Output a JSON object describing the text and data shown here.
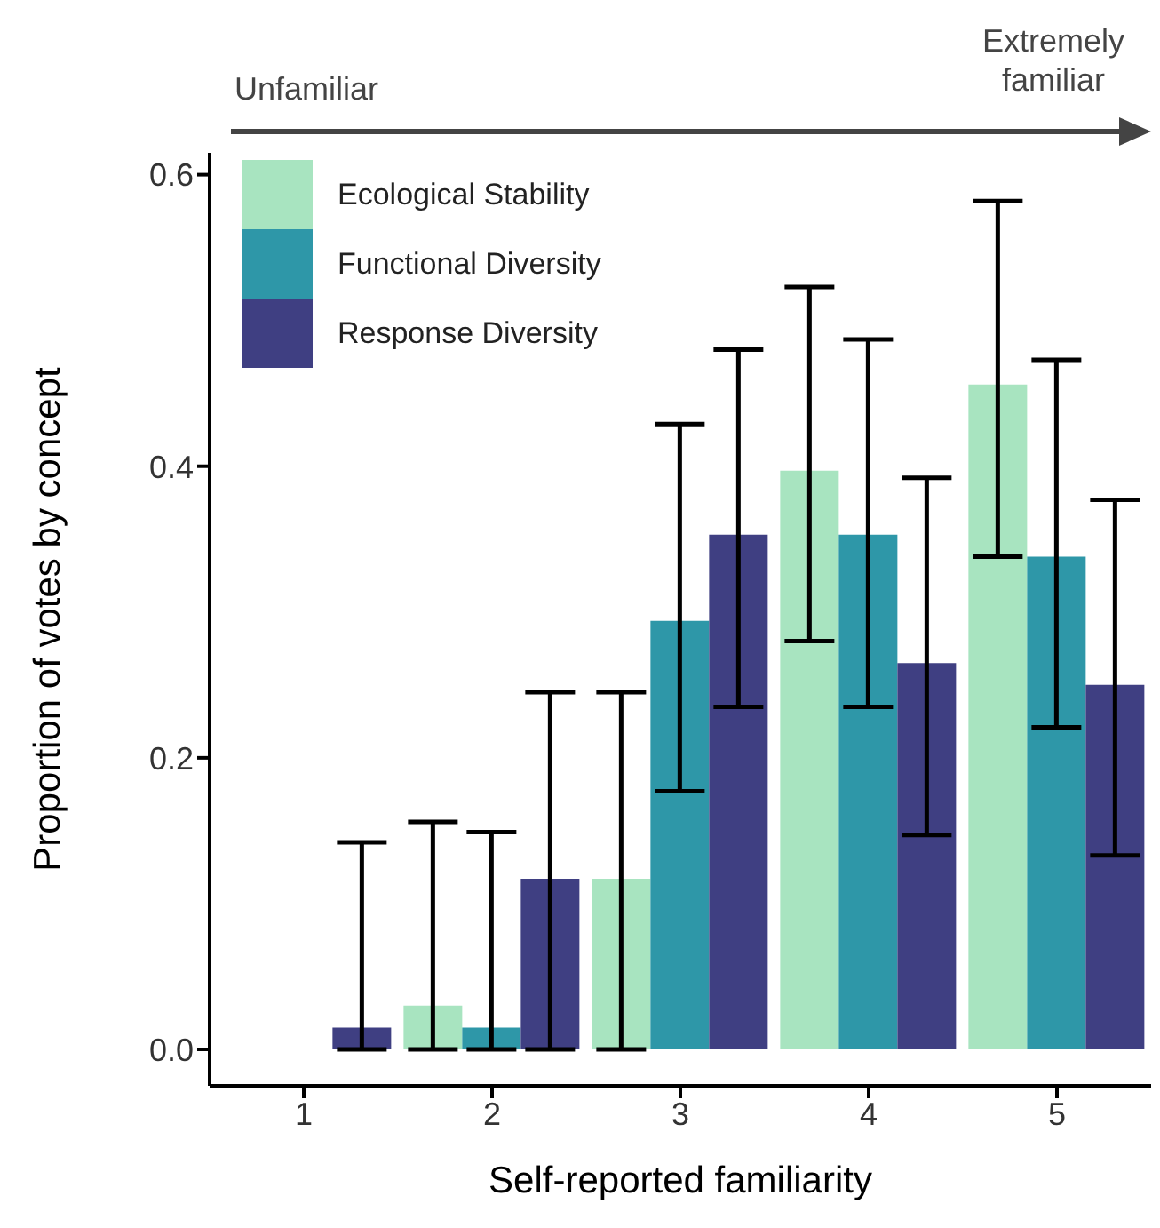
{
  "chart_data": {
    "type": "bar",
    "xlabel": "Self-reported familiarity",
    "ylabel": "Proportion of votes by concept",
    "categories": [
      "1",
      "2",
      "3",
      "4",
      "5"
    ],
    "series": [
      {
        "name": "Ecological Stability",
        "color": "#a8e4c0",
        "values": [
          0,
          0.03,
          0.117,
          0.397,
          0.456
        ],
        "errors": [
          null,
          [
            0,
            0.156
          ],
          [
            0,
            0.245
          ],
          [
            0.28,
            0.523
          ],
          [
            0.338,
            0.582
          ]
        ]
      },
      {
        "name": "Functional Diversity",
        "color": "#2e97a8",
        "values": [
          0,
          0.015,
          0.294,
          0.353,
          0.338
        ],
        "errors": [
          null,
          [
            0,
            0.149
          ],
          [
            0.177,
            0.429
          ],
          [
            0.235,
            0.487
          ],
          [
            0.221,
            0.473
          ]
        ]
      },
      {
        "name": "Response Diversity",
        "color": "#3f3f82",
        "values": [
          0.015,
          0.117,
          0.353,
          0.265,
          0.25
        ],
        "errors": [
          [
            0,
            0.142
          ],
          [
            0,
            0.245
          ],
          [
            0.235,
            0.48
          ],
          [
            0.147,
            0.392
          ],
          [
            0.133,
            0.377
          ]
        ]
      }
    ],
    "ylim": [
      -0.025,
      0.615
    ],
    "yticks": [
      {
        "value": 0,
        "label": "0.0"
      },
      {
        "value": 0.2,
        "label": "0.2"
      },
      {
        "value": 0.4,
        "label": "0.4"
      },
      {
        "value": 0.6,
        "label": "0.6"
      }
    ],
    "legend": "top left",
    "grid": false,
    "annotations": [
      "Unfamiliar",
      "Extremely familiar"
    ]
  }
}
